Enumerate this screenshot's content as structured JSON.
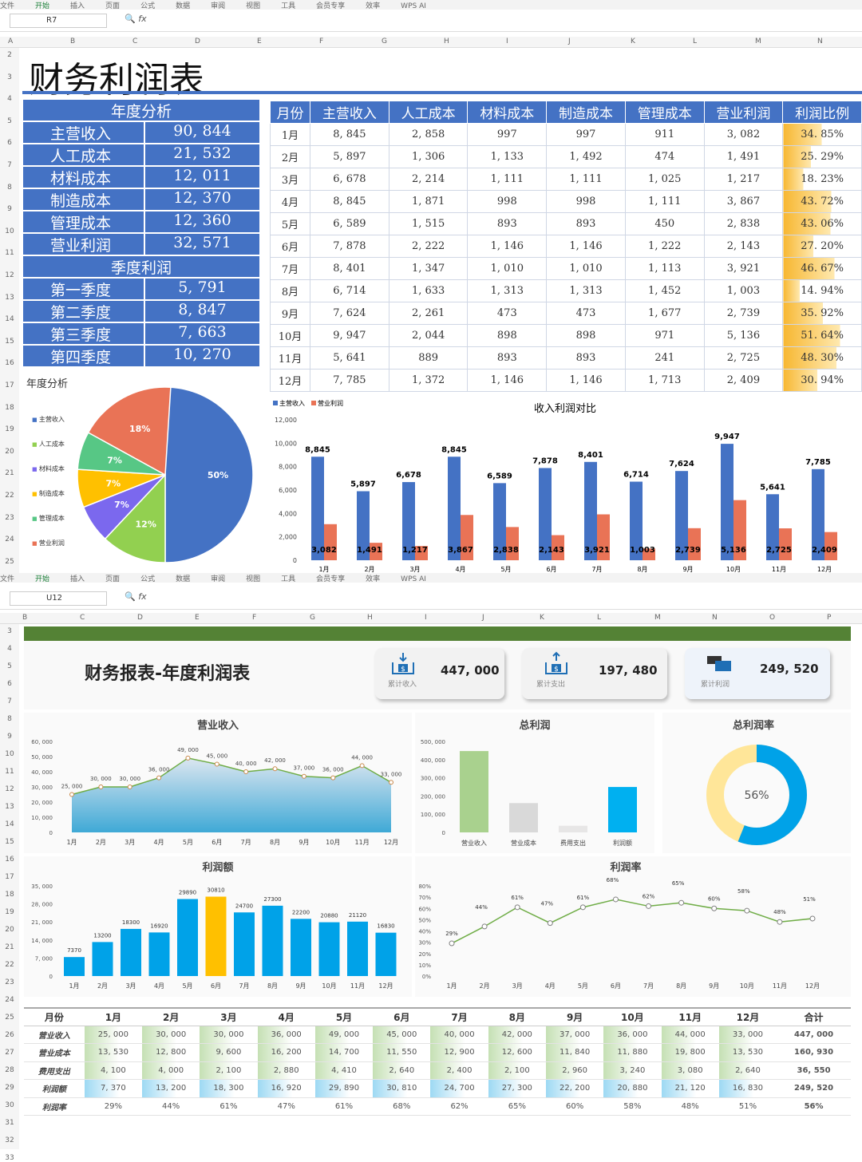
{
  "top": {
    "ribbon": [
      "文件",
      "开始",
      "插入",
      "页面",
      "公式",
      "数据",
      "审阅",
      "视图",
      "工具",
      "会员专享",
      "效率",
      "WPS AI"
    ],
    "namebox": "R7",
    "fx": "fx",
    "cols": [
      "A",
      "B",
      "C",
      "D",
      "E",
      "F",
      "G",
      "H",
      "I",
      "J",
      "K",
      "L",
      "M",
      "N"
    ],
    "title": "财务利润表",
    "annual_head": "年度分析",
    "annual": [
      [
        "主营收入",
        "90, 844"
      ],
      [
        "人工成本",
        "21, 532"
      ],
      [
        "材料成本",
        "12, 011"
      ],
      [
        "制造成本",
        "12, 370"
      ],
      [
        "管理成本",
        "12, 360"
      ],
      [
        "营业利润",
        "32, 571"
      ]
    ],
    "quarter_head": "季度利润",
    "quarters": [
      [
        "第一季度",
        "5, 791"
      ],
      [
        "第二季度",
        "8, 847"
      ],
      [
        "第三季度",
        "7, 663"
      ],
      [
        "第四季度",
        "10, 270"
      ]
    ],
    "month_headers": [
      "月份",
      "主营收入",
      "人工成本",
      "材料成本",
      "制造成本",
      "管理成本",
      "营业利润",
      "利润比例"
    ],
    "months": [
      [
        "1月",
        "8, 845",
        "2, 858",
        "997",
        "997",
        "911",
        "3, 082",
        "34. 85%"
      ],
      [
        "2月",
        "5, 897",
        "1, 306",
        "1, 133",
        "1, 492",
        "474",
        "1, 491",
        "25. 29%"
      ],
      [
        "3月",
        "6, 678",
        "2, 214",
        "1, 111",
        "1, 111",
        "1, 025",
        "1, 217",
        "18. 23%"
      ],
      [
        "4月",
        "8, 845",
        "1, 871",
        "998",
        "998",
        "1, 111",
        "3, 867",
        "43. 72%"
      ],
      [
        "5月",
        "6, 589",
        "1, 515",
        "893",
        "893",
        "450",
        "2, 838",
        "43. 06%"
      ],
      [
        "6月",
        "7, 878",
        "2, 222",
        "1, 146",
        "1, 146",
        "1, 222",
        "2, 143",
        "27. 20%"
      ],
      [
        "7月",
        "8, 401",
        "1, 347",
        "1, 010",
        "1, 010",
        "1, 113",
        "3, 921",
        "46. 67%"
      ],
      [
        "8月",
        "6, 714",
        "1, 633",
        "1, 313",
        "1, 313",
        "1, 452",
        "1, 003",
        "14. 94%"
      ],
      [
        "9月",
        "7, 624",
        "2, 261",
        "473",
        "473",
        "1, 677",
        "2, 739",
        "35. 92%"
      ],
      [
        "10月",
        "9, 947",
        "2, 044",
        "898",
        "898",
        "971",
        "5, 136",
        "51. 64%"
      ],
      [
        "11月",
        "5, 641",
        "889",
        "893",
        "893",
        "241",
        "2, 725",
        "48. 30%"
      ],
      [
        "12月",
        "7, 785",
        "1, 372",
        "1, 146",
        "1, 146",
        "1, 713",
        "2, 409",
        "30. 94%"
      ]
    ],
    "ratio_values": [
      34.85,
      25.29,
      18.23,
      43.72,
      43.06,
      27.2,
      46.67,
      14.94,
      35.92,
      51.64,
      48.3,
      30.94
    ],
    "pie_title": "年度分析",
    "pie_legend": [
      "主营收入",
      "人工成本",
      "材料成本",
      "制造成本",
      "管理成本",
      "营业利润"
    ],
    "bar_legend": [
      "主营收入",
      "营业利润"
    ],
    "bar_title": "收入利润对比"
  },
  "bottom": {
    "namebox": "U12",
    "cols": [
      "B",
      "C",
      "D",
      "E",
      "F",
      "G",
      "H",
      "I",
      "J",
      "K",
      "L",
      "M",
      "N",
      "O",
      "P"
    ],
    "title": "财务报表-年度利润表",
    "cards": [
      {
        "value": "447, 000",
        "label": "累计收入"
      },
      {
        "value": "197, 480",
        "label": "累计支出"
      },
      {
        "value": "249, 520",
        "label": "累计利润"
      }
    ],
    "chart_titles": [
      "营业收入",
      "总利润",
      "总利润率",
      "利润额",
      "利润率"
    ],
    "table_headers": [
      "月份",
      "1月",
      "2月",
      "3月",
      "4月",
      "5月",
      "6月",
      "7月",
      "8月",
      "9月",
      "10月",
      "11月",
      "12月",
      "合计"
    ],
    "table_rows": [
      [
        "营业收入",
        "25, 000",
        "30, 000",
        "30, 000",
        "36, 000",
        "49, 000",
        "45, 000",
        "40, 000",
        "42, 000",
        "37, 000",
        "36, 000",
        "44, 000",
        "33, 000",
        "447, 000"
      ],
      [
        "营业成本",
        "13, 530",
        "12, 800",
        "9, 600",
        "16, 200",
        "14, 700",
        "11, 550",
        "12, 900",
        "12, 600",
        "11, 840",
        "11, 880",
        "19, 800",
        "13, 530",
        "160, 930"
      ],
      [
        "费用支出",
        "4, 100",
        "4, 000",
        "2, 100",
        "2, 880",
        "4, 410",
        "2, 640",
        "2, 400",
        "2, 100",
        "2, 960",
        "3, 240",
        "3, 080",
        "2, 640",
        "36, 550"
      ],
      [
        "利润额",
        "7, 370",
        "13, 200",
        "18, 300",
        "16, 920",
        "29, 890",
        "30, 810",
        "24, 700",
        "27, 300",
        "22, 200",
        "20, 880",
        "21, 120",
        "16, 830",
        "249, 520"
      ],
      [
        "利润率",
        "29%",
        "44%",
        "61%",
        "47%",
        "61%",
        "68%",
        "62%",
        "65%",
        "60%",
        "58%",
        "48%",
        "51%",
        "56%"
      ]
    ]
  },
  "chart_data": [
    {
      "type": "pie",
      "title": "年度分析",
      "categories": [
        "主营收入",
        "人工成本",
        "材料成本",
        "制造成本",
        "管理成本",
        "营业利润"
      ],
      "values": [
        50,
        12,
        7,
        7,
        7,
        18
      ],
      "colors": [
        "#4472c4",
        "#92d050",
        "#7b68ee",
        "#ffc000",
        "#57c785",
        "#e97356"
      ]
    },
    {
      "type": "bar",
      "title": "收入利润对比",
      "categories": [
        "1月",
        "2月",
        "3月",
        "4月",
        "5月",
        "6月",
        "7月",
        "8月",
        "9月",
        "10月",
        "11月",
        "12月"
      ],
      "series": [
        {
          "name": "主营收入",
          "values": [
            8845,
            5897,
            6678,
            8845,
            6589,
            7878,
            8401,
            6714,
            7624,
            9947,
            5641,
            7785
          ]
        },
        {
          "name": "营业利润",
          "values": [
            3082,
            1491,
            1217,
            3867,
            2838,
            2143,
            3921,
            1003,
            2739,
            5136,
            2725,
            2409
          ]
        }
      ],
      "ylim": [
        0,
        12000
      ],
      "yticks": [
        "0",
        "2,000",
        "4,000",
        "6,000",
        "8,000",
        "10,000",
        "12,000"
      ]
    },
    {
      "type": "area",
      "title": "营业收入",
      "categories": [
        "1月",
        "2月",
        "3月",
        "4月",
        "5月",
        "6月",
        "7月",
        "8月",
        "9月",
        "10月",
        "11月",
        "12月"
      ],
      "values": [
        25000,
        30000,
        30000,
        36000,
        49000,
        45000,
        40000,
        42000,
        37000,
        36000,
        44000,
        33000
      ],
      "labels": [
        "25, 000",
        "30, 000",
        "30, 000",
        "36, 000",
        "49, 000",
        "45, 000",
        "40, 000",
        "42, 000",
        "37, 000",
        "36, 000",
        "44, 000",
        "33, 000"
      ],
      "ylim": [
        0,
        60000
      ],
      "yticks": [
        "0",
        "10, 000",
        "20, 000",
        "30, 000",
        "40, 000",
        "50, 000",
        "60, 000"
      ]
    },
    {
      "type": "bar",
      "title": "总利润",
      "categories": [
        "营业收入",
        "营业成本",
        "费用支出",
        "利润额"
      ],
      "values": [
        447000,
        160930,
        36550,
        249520
      ],
      "colors": [
        "#a9d18e",
        "#d9d9d9",
        "#e7e6e6",
        "#00b0f0"
      ],
      "ylim": [
        0,
        500000
      ],
      "yticks": [
        "0",
        "100, 000",
        "200, 000",
        "300, 000",
        "400, 000",
        "500, 000"
      ]
    },
    {
      "type": "pie",
      "title": "总利润率",
      "values": [
        56,
        44
      ],
      "label": "56%"
    },
    {
      "type": "bar",
      "title": "利润额",
      "categories": [
        "1月",
        "2月",
        "3月",
        "4月",
        "5月",
        "6月",
        "7月",
        "8月",
        "9月",
        "10月",
        "11月",
        "12月"
      ],
      "values": [
        7370,
        13200,
        18300,
        16920,
        29890,
        30810,
        24700,
        27300,
        22200,
        20880,
        21120,
        16830
      ],
      "ylim": [
        0,
        35000
      ],
      "yticks": [
        "0",
        "7, 000",
        "14, 000",
        "21, 000",
        "28, 000",
        "35, 000"
      ]
    },
    {
      "type": "line",
      "title": "利润率",
      "categories": [
        "1月",
        "2月",
        "3月",
        "4月",
        "5月",
        "6月",
        "7月",
        "8月",
        "9月",
        "10月",
        "11月",
        "12月"
      ],
      "values": [
        29,
        44,
        61,
        47,
        61,
        68,
        62,
        65,
        60,
        58,
        48,
        51
      ],
      "ylim": [
        0,
        80
      ],
      "yticks": [
        "0%",
        "10%",
        "20%",
        "30%",
        "40%",
        "50%",
        "60%",
        "70%",
        "80%"
      ]
    }
  ]
}
